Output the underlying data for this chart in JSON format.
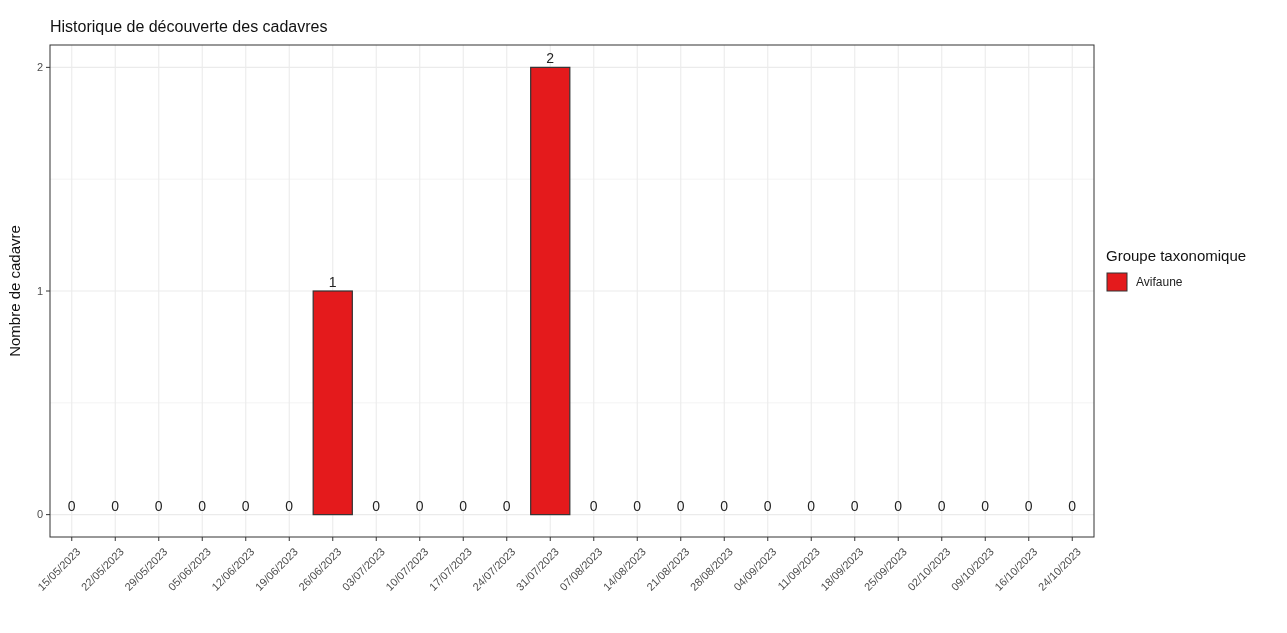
{
  "chart_data": {
    "type": "bar",
    "title": "Historique de découverte des cadavres",
    "ylabel": "Nombre de cadavre",
    "legend_title": "Groupe taxonomique",
    "categories": [
      "15/05/2023",
      "22/05/2023",
      "29/05/2023",
      "05/06/2023",
      "12/06/2023",
      "19/06/2023",
      "26/06/2023",
      "03/07/2023",
      "10/07/2023",
      "17/07/2023",
      "24/07/2023",
      "31/07/2023",
      "07/08/2023",
      "14/08/2023",
      "21/08/2023",
      "28/08/2023",
      "04/09/2023",
      "11/09/2023",
      "18/09/2023",
      "25/09/2023",
      "02/10/2023",
      "09/10/2023",
      "16/10/2023",
      "24/10/2023"
    ],
    "series": [
      {
        "name": "Avifaune",
        "color": "#e41a1c",
        "values": [
          0,
          0,
          0,
          0,
          0,
          0,
          1,
          0,
          0,
          0,
          0,
          2,
          0,
          0,
          0,
          0,
          0,
          0,
          0,
          0,
          0,
          0,
          0,
          0
        ]
      }
    ],
    "ylim": [
      -0.1,
      2.1
    ],
    "yticks": [
      0,
      {
        "value": 0.5,
        "label": null
      },
      1,
      {
        "value": 1.5,
        "label": null
      },
      2
    ],
    "grid": true,
    "legend": "right",
    "data_labels": true
  }
}
